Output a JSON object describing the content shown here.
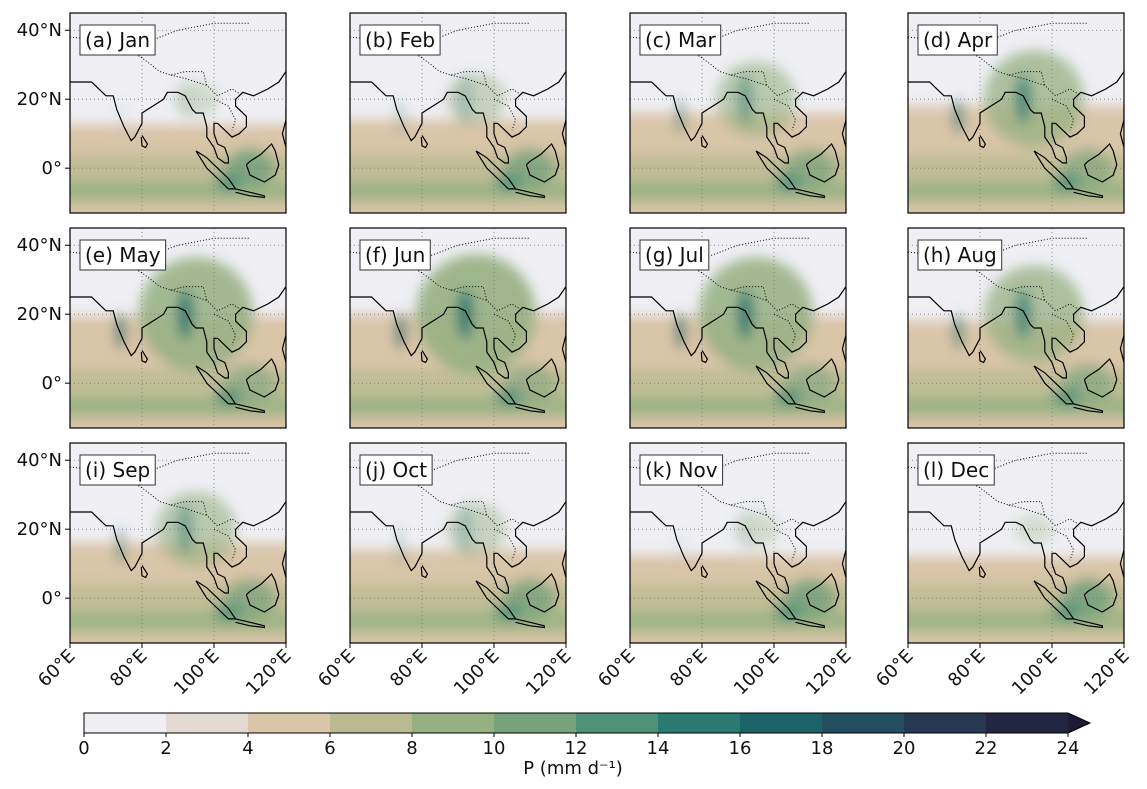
{
  "panels": [
    "(a) Jan",
    "(b) Feb",
    "(c) Mar",
    "(d) Apr",
    "(e) May",
    "(f) Jun",
    "(g) Jul",
    "(h) Aug",
    "(i) Sep",
    "(j) Oct",
    "(k) Nov",
    "(l) Dec"
  ],
  "lat_ticks": [
    "40°N",
    "20°N",
    "0°"
  ],
  "lon_ticks": [
    "60°E",
    "80°E",
    "100°E",
    "120°E"
  ],
  "colorbar": {
    "label": "P (mm d⁻¹)",
    "ticks": [
      0,
      2,
      4,
      6,
      8,
      10,
      12,
      14,
      16,
      18,
      20,
      22,
      24
    ],
    "colors": [
      "#efeff4",
      "#e3dbd3",
      "#d9c5a8",
      "#b9ba90",
      "#96b082",
      "#77a27b",
      "#4e9178",
      "#2a7a72",
      "#1b6368",
      "#224e5f",
      "#263852",
      "#222643"
    ],
    "extend_color": "#1e1a33"
  }
}
